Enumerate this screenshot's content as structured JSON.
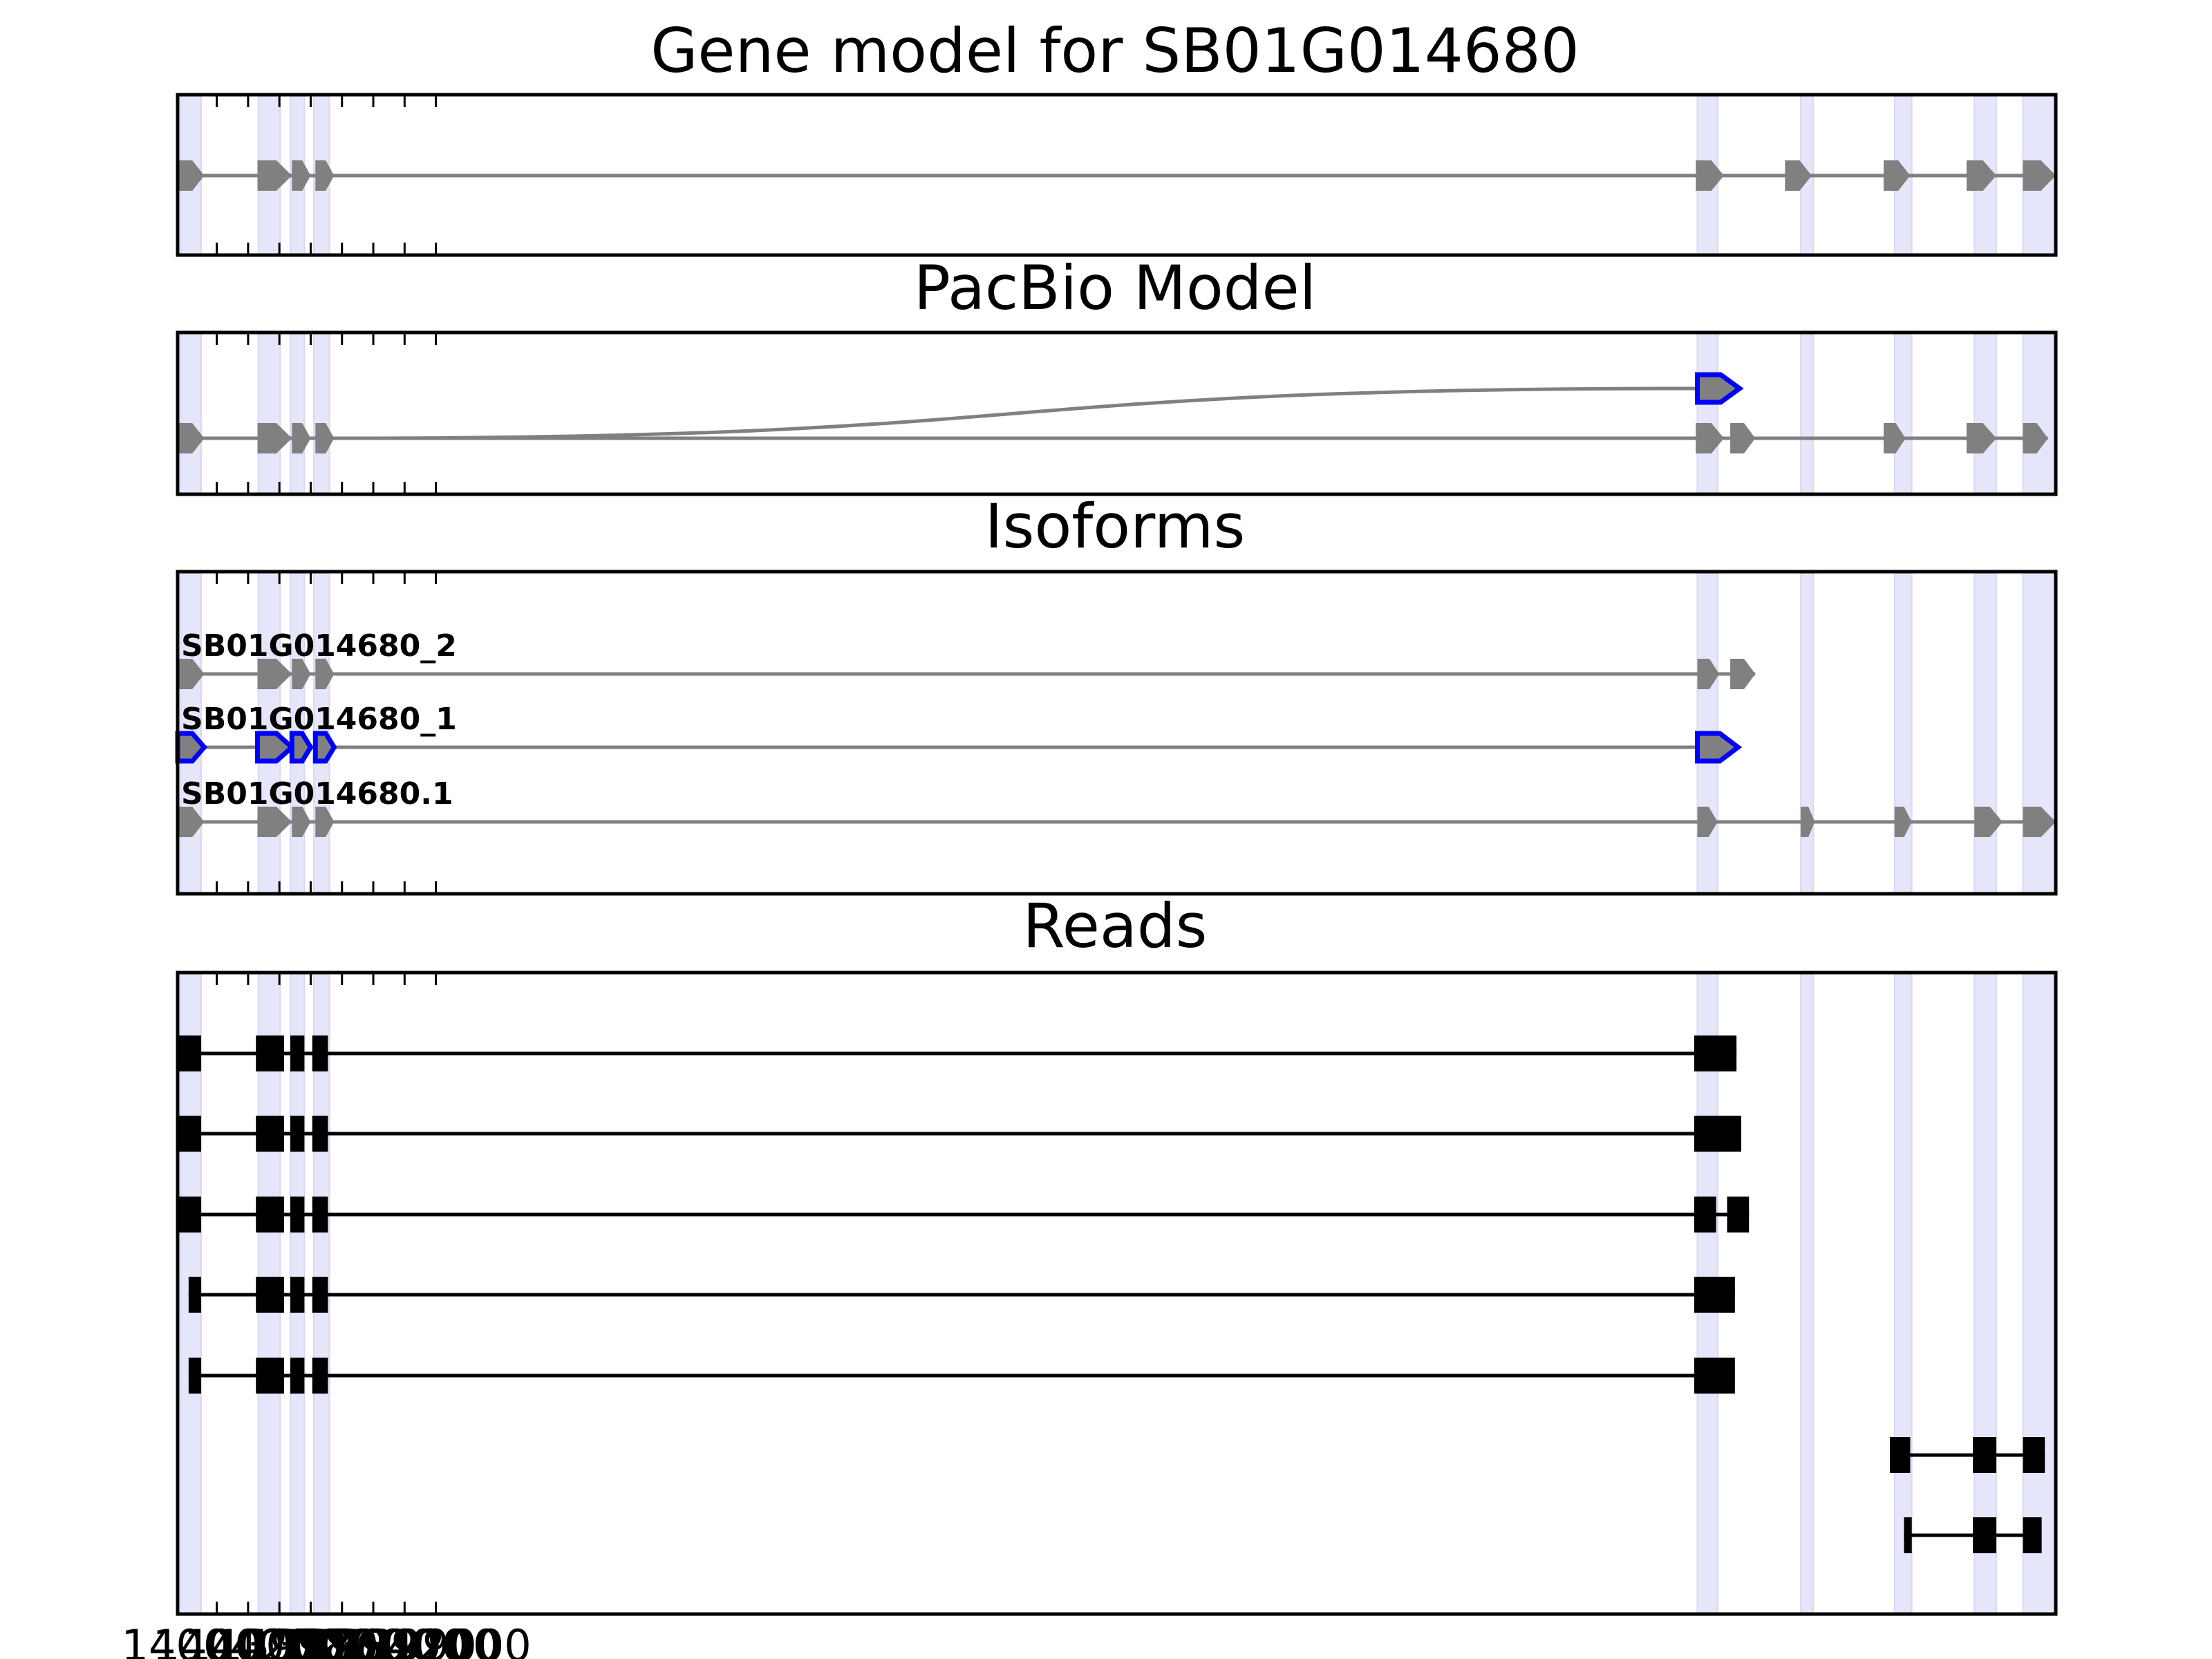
{
  "figure": {
    "panel_titles": [
      "Gene model for SB01G014680",
      "PacBio Model",
      "Isoforms",
      "Reads"
    ]
  },
  "chart_data": {
    "type": "gene_model",
    "xlim": [
      1400650,
      1388650
    ],
    "x_axis": "genomic coordinate (reversed, minus strand)",
    "x_ticks": [
      1400400,
      1400200,
      1400000,
      1399800,
      1399600,
      1399400,
      1399200,
      1399000
    ],
    "x_tick_labels": [
      "1400400",
      "1400200",
      "1400000",
      "1399800",
      "1399600",
      "1399400",
      "1399200",
      "1399000"
    ],
    "colors": {
      "exon": "#808080",
      "intron": "#808080",
      "pacbio_novel": "#0000ff",
      "read": "#000000",
      "shade": "#e6e6fa",
      "shade_edge": "#d8d8f5"
    },
    "shaded_regions": [
      [
        1400630,
        1400500
      ],
      [
        1400135,
        1399995
      ],
      [
        1399930,
        1399840
      ],
      [
        1399780,
        1399680
      ],
      [
        1390940,
        1390810
      ],
      [
        1390280,
        1390200
      ],
      [
        1389680,
        1389570
      ],
      [
        1389170,
        1389030
      ],
      [
        1388860,
        1388660
      ]
    ],
    "panels": [
      {
        "title": "Gene model for SB01G014680",
        "tracks": [
          {
            "exons": [
              [
                1400650,
                1400480
              ],
              [
                1400140,
                1399920
              ],
              [
                1399920,
                1399800
              ],
              [
                1399770,
                1399650
              ],
              [
                1390950,
                1390770
              ],
              [
                1390380,
                1390210
              ],
              [
                1389750,
                1389580
              ],
              [
                1389220,
                1389030
              ],
              [
                1388860,
                1388650
              ]
            ],
            "style": "gene"
          }
        ]
      },
      {
        "title": "PacBio Model",
        "tracks": [
          {
            "exons": [
              [
                1400650,
                1400480
              ],
              [
                1400140,
                1399920
              ],
              [
                1399920,
                1399800
              ],
              [
                1399770,
                1399650
              ],
              [
                1390950,
                1390770
              ],
              [
                1390730,
                1390570
              ],
              [
                1389750,
                1389610
              ],
              [
                1389220,
                1389030
              ],
              [
                1388860,
                1388700
              ]
            ],
            "style": "gene"
          },
          {
            "exons": [
              [
                1390940,
                1390670
              ]
            ],
            "style": "novel",
            "spliced_from": 1399650
          }
        ]
      },
      {
        "title": "Isoforms",
        "tracks": [
          {
            "label": "SB01G014680_2",
            "exons": [
              [
                1400650,
                1400480
              ],
              [
                1400140,
                1399920
              ],
              [
                1399920,
                1399800
              ],
              [
                1399770,
                1399650
              ],
              [
                1390940,
                1390800
              ],
              [
                1390730,
                1390570
              ]
            ],
            "style": "gene"
          },
          {
            "label": "SB01G014680_1",
            "exons": [
              [
                1400650,
                1400480
              ],
              [
                1400140,
                1399920
              ],
              [
                1399920,
                1399800
              ],
              [
                1399770,
                1399650
              ],
              [
                1390940,
                1390680
              ]
            ],
            "style": "novel"
          },
          {
            "label": "SB01G014680.1",
            "exons": [
              [
                1400650,
                1400480
              ],
              [
                1400140,
                1399920
              ],
              [
                1399920,
                1399800
              ],
              [
                1399770,
                1399650
              ],
              [
                1390940,
                1390810
              ],
              [
                1390280,
                1390190
              ],
              [
                1389680,
                1389570
              ],
              [
                1389170,
                1388990
              ],
              [
                1388860,
                1388650
              ]
            ],
            "style": "gene"
          }
        ]
      },
      {
        "title": "Reads",
        "tracks": [
          {
            "exons": [
              [
                1400650,
                1400500
              ],
              [
                1400150,
                1399970
              ],
              [
                1399930,
                1399840
              ],
              [
                1399790,
                1399690
              ],
              [
                1390960,
                1390690
              ]
            ],
            "style": "read"
          },
          {
            "exons": [
              [
                1400650,
                1400500
              ],
              [
                1400150,
                1399970
              ],
              [
                1399930,
                1399840
              ],
              [
                1399790,
                1399690
              ],
              [
                1390960,
                1390660
              ]
            ],
            "style": "read"
          },
          {
            "exons": [
              [
                1400650,
                1400500
              ],
              [
                1400150,
                1399970
              ],
              [
                1399930,
                1399840
              ],
              [
                1399790,
                1399690
              ],
              [
                1390960,
                1390820
              ],
              [
                1390750,
                1390610
              ]
            ],
            "style": "read"
          },
          {
            "exons": [
              [
                1400580,
                1400500
              ],
              [
                1400150,
                1399970
              ],
              [
                1399930,
                1399840
              ],
              [
                1399790,
                1399690
              ],
              [
                1390960,
                1390700
              ]
            ],
            "style": "read"
          },
          {
            "exons": [
              [
                1400580,
                1400500
              ],
              [
                1400150,
                1399970
              ],
              [
                1399930,
                1399840
              ],
              [
                1399790,
                1399690
              ],
              [
                1390960,
                1390700
              ]
            ],
            "style": "read"
          },
          {
            "exons": [
              [
                1389710,
                1389580
              ],
              [
                1389180,
                1389030
              ],
              [
                1388860,
                1388720
              ]
            ],
            "style": "read"
          },
          {
            "exons": [
              [
                1389620,
                1389570
              ],
              [
                1389180,
                1389030
              ],
              [
                1388860,
                1388740
              ]
            ],
            "style": "read"
          }
        ]
      }
    ]
  }
}
